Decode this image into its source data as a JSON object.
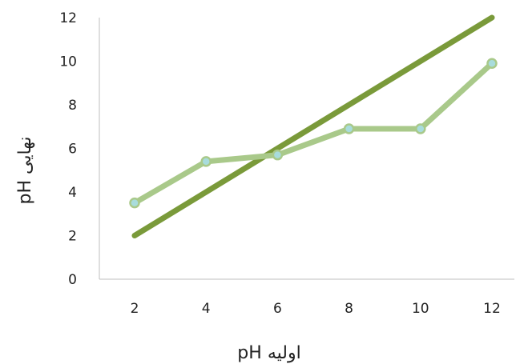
{
  "chart_data": {
    "type": "line",
    "title": "",
    "xlabel": "pH اولیه",
    "ylabel": "pH نهایی",
    "x": [
      2,
      4,
      6,
      8,
      10,
      12
    ],
    "xlim": [
      2,
      12
    ],
    "ylim": [
      0,
      12
    ],
    "x_ticks": [
      "2",
      "4",
      "6",
      "8",
      "10",
      "12"
    ],
    "y_ticks": [
      "0",
      "2",
      "4",
      "6",
      "8",
      "10",
      "12"
    ],
    "grid": false,
    "legend": "none",
    "series": [
      {
        "values": [
          2,
          4,
          6,
          8,
          10,
          12
        ],
        "color": "#7a9a3a",
        "markers": false
      },
      {
        "values": [
          3.5,
          5.4,
          5.7,
          6.9,
          6.9,
          9.9
        ],
        "color": "#a9c98a",
        "marker_color": "#a8dcdc",
        "markers": true
      }
    ]
  }
}
